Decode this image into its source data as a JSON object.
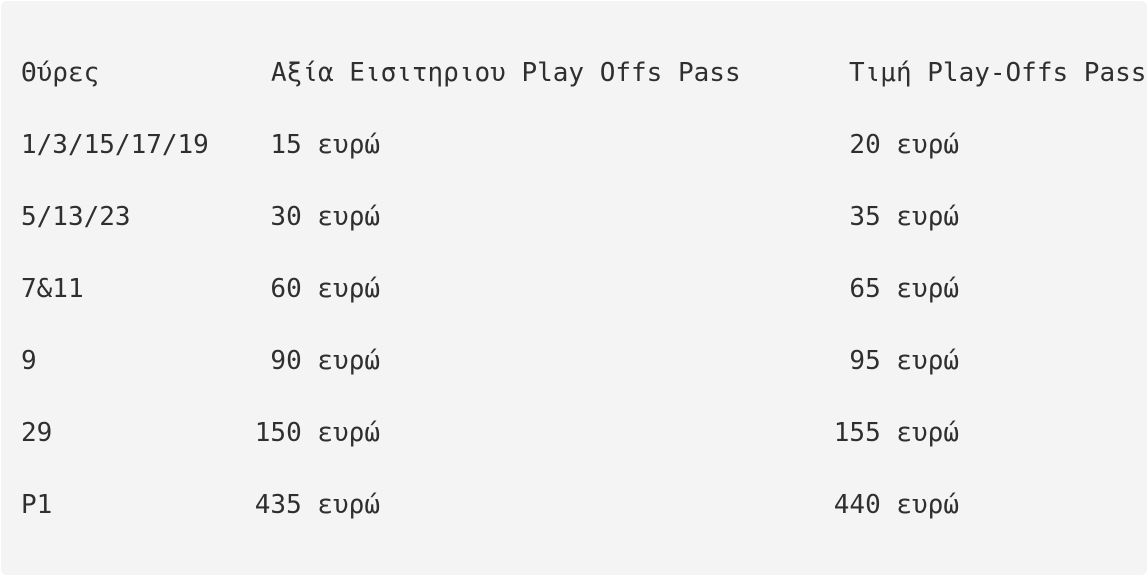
{
  "table": {
    "header": [
      "Θύρες",
      "Αξία Εισιτηριου Play Offs Pass",
      "Τιμή Play-Offs Pass"
    ],
    "rows": [
      [
        "1/3/15/17/19",
        "15 ευρώ",
        "20 ευρώ"
      ],
      [
        "5/13/23",
        "30 ευρώ",
        "35 ευρώ"
      ],
      [
        "7&11",
        "60 ευρώ",
        "65 ευρώ"
      ],
      [
        "9",
        "90 ευρώ",
        "95 ευρώ"
      ],
      [
        "29",
        "150 ευρώ",
        "155 ευρώ"
      ],
      [
        "P1",
        "435 ευρώ",
        "440 ευρώ"
      ]
    ]
  }
}
